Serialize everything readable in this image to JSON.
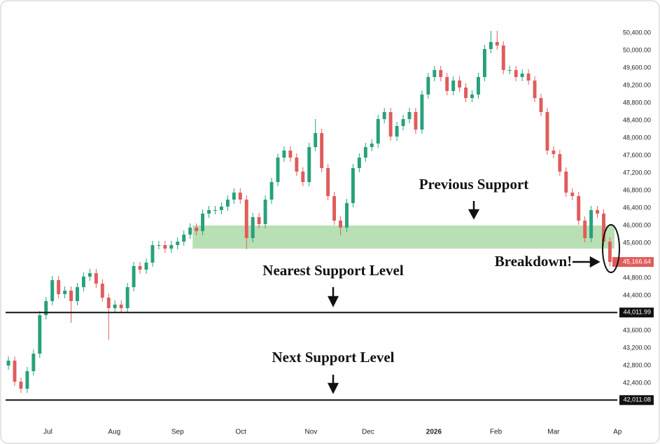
{
  "chart_data": {
    "type": "candlestick",
    "up_color": "#26a17b",
    "down_color": "#e05c5c",
    "xlim": [
      -0.45,
      97.4
    ],
    "ylim": [
      41472,
      51152
    ],
    "xticks": [
      {
        "value": 6.3,
        "label": "Jul"
      },
      {
        "value": 16.9,
        "label": "Aug"
      },
      {
        "value": 27.0,
        "label": "Sep"
      },
      {
        "value": 37.1,
        "label": "Oct"
      },
      {
        "value": 48.3,
        "label": "Nov"
      },
      {
        "value": 57.4,
        "label": "Dec"
      },
      {
        "value": 67.9,
        "label": "2026"
      },
      {
        "value": 77.8,
        "label": "Feb"
      },
      {
        "value": 87.0,
        "label": "Mar"
      },
      {
        "value": 97.2,
        "label": "Ap"
      }
    ],
    "yticks": [
      {
        "value": 42400,
        "label": "42,400.00"
      },
      {
        "value": 42800,
        "label": "42,800.00"
      },
      {
        "value": 43200,
        "label": "43,200.00"
      },
      {
        "value": 43600,
        "label": "43,600.00"
      },
      {
        "value": 44400,
        "label": "44,400.00"
      },
      {
        "value": 44800,
        "label": "44,800.00"
      },
      {
        "value": 45600,
        "label": "45,600.00"
      },
      {
        "value": 46000,
        "label": "46,000.00"
      },
      {
        "value": 46400,
        "label": "46,400.00"
      },
      {
        "value": 46800,
        "label": "46,800.00"
      },
      {
        "value": 47200,
        "label": "47,200.00"
      },
      {
        "value": 47600,
        "label": "47,600.00"
      },
      {
        "value": 48000,
        "label": "48,000.00"
      },
      {
        "value": 48400,
        "label": "48,400.00"
      },
      {
        "value": 48800,
        "label": "48,800.00"
      },
      {
        "value": 49200,
        "label": "49,200.00"
      },
      {
        "value": 49600,
        "label": "49,600.00"
      },
      {
        "value": 50000,
        "label": "50,000.00"
      },
      {
        "value": 50400,
        "label": "50,400.00"
      }
    ],
    "x": [
      0,
      1,
      2,
      3,
      4,
      5,
      6,
      7,
      8,
      9,
      10,
      11,
      12,
      13,
      14,
      15,
      16,
      17,
      18,
      19,
      20,
      21,
      22,
      23,
      24,
      25,
      26,
      27,
      28,
      29,
      30,
      31,
      32,
      33,
      34,
      35,
      36,
      37,
      38,
      39,
      40,
      41,
      42,
      43,
      44,
      45,
      46,
      47,
      48,
      49,
      50,
      51,
      52,
      53,
      54,
      55,
      56,
      57,
      58,
      59,
      60,
      61,
      62,
      63,
      64,
      65,
      66,
      67,
      68,
      69,
      70,
      71,
      72,
      73,
      74,
      75,
      76,
      77,
      78,
      79,
      80,
      81,
      82,
      83,
      84,
      85,
      86,
      87,
      88,
      89,
      90,
      91,
      92,
      93,
      94,
      95,
      96
    ],
    "open": [
      42800,
      42912,
      42432,
      42272,
      42672,
      43072,
      43952,
      44272,
      44752,
      44432,
      44512,
      44272,
      44592,
      44832,
      44912,
      44672,
      44352,
      44112,
      44192,
      44112,
      44592,
      45072,
      44992,
      45152,
      45552,
      45552,
      45472,
      45552,
      45632,
      45792,
      45952,
      45872,
      46272,
      46352,
      46352,
      46432,
      46592,
      46752,
      46592,
      45712,
      46192,
      46032,
      46592,
      46992,
      47552,
      47712,
      47552,
      47232,
      46992,
      47792,
      48112,
      47312,
      46672,
      46112,
      45952,
      46512,
      47312,
      47552,
      47792,
      47872,
      48432,
      48592,
      48032,
      48272,
      48432,
      48592,
      48192,
      48992,
      49392,
      49552,
      49392,
      49072,
      49312,
      49152,
      48912,
      48992,
      49392,
      50032,
      50192,
      50112,
      49552,
      49552,
      49392,
      49472,
      49312,
      48912,
      48592,
      47712,
      47632,
      47232,
      46752,
      46672,
      46112,
      45712,
      46352,
      46272,
      45632
    ],
    "high": [
      43008,
      43008,
      42528,
      42768,
      43168,
      44048,
      44368,
      44848,
      44848,
      44608,
      44608,
      44688,
      44928,
      45008,
      45008,
      44768,
      44448,
      44288,
      44288,
      44688,
      45168,
      45168,
      45248,
      45648,
      45648,
      45648,
      45648,
      45728,
      45888,
      46048,
      46048,
      46368,
      46448,
      46448,
      46528,
      46688,
      46848,
      46848,
      46688,
      46288,
      46288,
      46688,
      47088,
      47648,
      47808,
      47808,
      47648,
      47328,
      47888,
      48432,
      48208,
      47408,
      46768,
      46208,
      46608,
      47408,
      47648,
      47888,
      47968,
      48528,
      48688,
      48688,
      48368,
      48528,
      48688,
      48688,
      49088,
      49488,
      49648,
      49648,
      49488,
      49408,
      49408,
      49248,
      49088,
      49488,
      50128,
      50448,
      50448,
      50208,
      49648,
      49648,
      49568,
      49568,
      49408,
      49008,
      48688,
      47808,
      47728,
      47328,
      46848,
      46768,
      46208,
      46448,
      46448,
      46368,
      45728
    ],
    "low": [
      42704,
      42336,
      42176,
      42176,
      42576,
      42976,
      43856,
      44176,
      44336,
      44336,
      43776,
      44176,
      44496,
      44736,
      44576,
      44256,
      43392,
      44016,
      44016,
      44016,
      44496,
      44896,
      44896,
      45056,
      45456,
      45376,
      45376,
      45456,
      45536,
      45696,
      45776,
      45776,
      46176,
      46256,
      46256,
      46336,
      46496,
      46496,
      45456,
      45616,
      45936,
      45936,
      46496,
      46896,
      47456,
      47456,
      47136,
      46896,
      46896,
      47696,
      47216,
      46576,
      46016,
      45776,
      45856,
      46416,
      47216,
      47456,
      47696,
      47776,
      48336,
      47936,
      47936,
      48176,
      48336,
      48096,
      48096,
      48896,
      49296,
      49296,
      48976,
      48976,
      49056,
      48816,
      48816,
      48896,
      49296,
      49936,
      50016,
      49456,
      49456,
      49296,
      49296,
      49216,
      48816,
      48496,
      47616,
      47536,
      47136,
      46656,
      46576,
      46016,
      45616,
      45616,
      46176,
      45536,
      45070
    ],
    "close": [
      42912,
      42432,
      42272,
      42672,
      43072,
      43952,
      44272,
      44752,
      44432,
      44512,
      44272,
      44592,
      44832,
      44912,
      44672,
      44352,
      44112,
      44192,
      44112,
      44592,
      45072,
      44992,
      45152,
      45552,
      45552,
      45472,
      45552,
      45632,
      45792,
      45952,
      45872,
      46272,
      46352,
      46352,
      46432,
      46592,
      46752,
      46592,
      45712,
      46192,
      46032,
      46592,
      46992,
      47552,
      47712,
      47552,
      47232,
      46992,
      47792,
      48112,
      47312,
      46672,
      46112,
      45952,
      46512,
      47312,
      47552,
      47792,
      47872,
      48432,
      48592,
      48032,
      48272,
      48432,
      48592,
      48192,
      48992,
      49392,
      49552,
      49392,
      49072,
      49312,
      49152,
      48912,
      48992,
      49392,
      50032,
      50192,
      50112,
      49552,
      49552,
      49392,
      49472,
      49312,
      48912,
      48592,
      47712,
      47632,
      47232,
      46752,
      46672,
      46112,
      45712,
      46352,
      46272,
      45632,
      45166.64
    ],
    "last_label": "45,166.64",
    "support_zone": {
      "low": 45472,
      "high": 46000,
      "x_start": 29.4,
      "color": "#b9dfb4"
    },
    "levels": [
      {
        "value": 44011.99,
        "label": "44,011.99"
      },
      {
        "value": 42011.08,
        "label": "42,011.08"
      }
    ],
    "annotations": [
      "Previous Support",
      "Breakdown!",
      "Nearest Support Level",
      "Next Support Level"
    ]
  }
}
